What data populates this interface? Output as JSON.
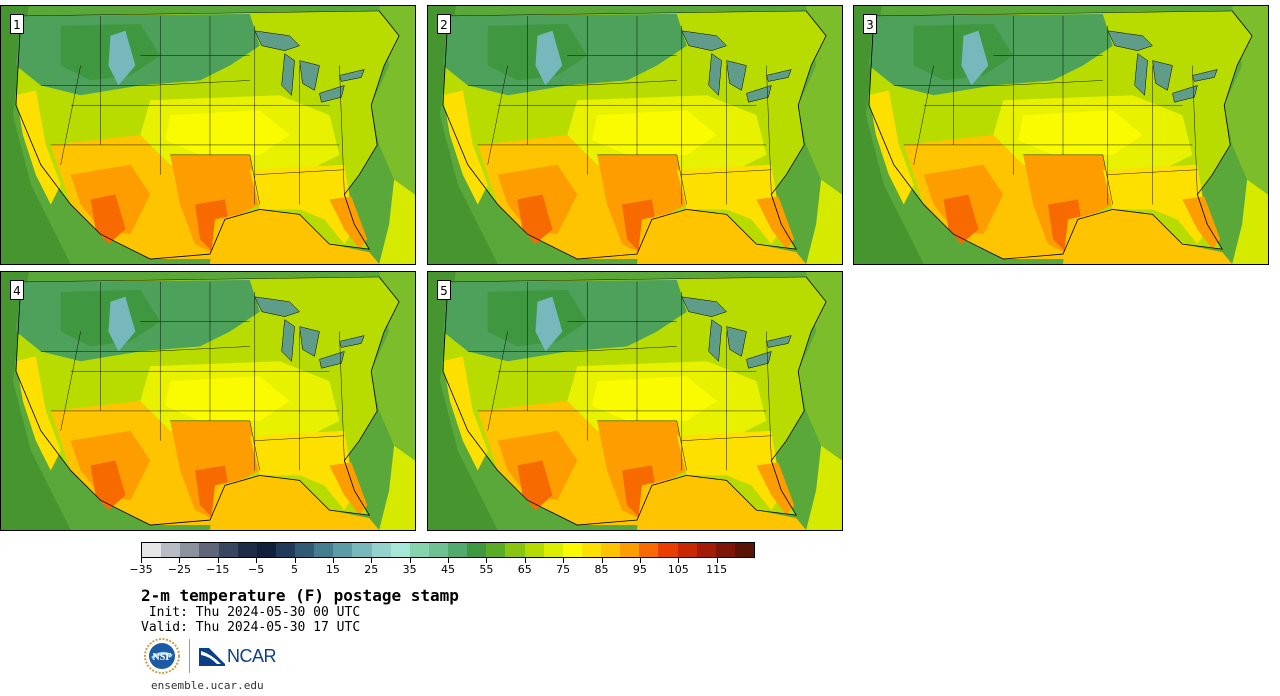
{
  "panels": [
    {
      "id": "1",
      "label": "1"
    },
    {
      "id": "2",
      "label": "2"
    },
    {
      "id": "3",
      "label": "3"
    },
    {
      "id": "4",
      "label": "4"
    },
    {
      "id": "5",
      "label": "5"
    }
  ],
  "map": {
    "region": "Contiguous United States",
    "field": "2-m temperature",
    "units": "F",
    "overlays": [
      "state-borders",
      "coastlines",
      "great-lakes"
    ]
  },
  "colorbar": {
    "colors": [
      "#e6e6e6",
      "#b8bcc4",
      "#8b919d",
      "#5f6679",
      "#394660",
      "#1f2c48",
      "#12203b",
      "#223a5a",
      "#315a76",
      "#437d8f",
      "#5b9ca6",
      "#76b8bb",
      "#96d2cc",
      "#a6e8d8",
      "#86d4af",
      "#6ec193",
      "#52ab6d",
      "#3f9840",
      "#5aac27",
      "#88c410",
      "#b4da00",
      "#dcee00",
      "#fbfb00",
      "#fde000",
      "#fec400",
      "#fd9d00",
      "#f76a00",
      "#e83f00",
      "#c82900",
      "#a31c08",
      "#7d1608",
      "#5a1407"
    ],
    "tick_labels": [
      "−35",
      "−25",
      "−15",
      "−5",
      "5",
      "15",
      "25",
      "35",
      "45",
      "55",
      "65",
      "75",
      "85",
      "95",
      "105",
      "115"
    ]
  },
  "title": "2-m temperature (F) postage stamp",
  "init_line": " Init: Thu 2024-05-30 00 UTC",
  "valid_line": "Valid: Thu 2024-05-30 17 UTC",
  "logos": {
    "nsf": "NSF",
    "ncar": "NCAR"
  },
  "url": "ensemble.ucar.edu"
}
